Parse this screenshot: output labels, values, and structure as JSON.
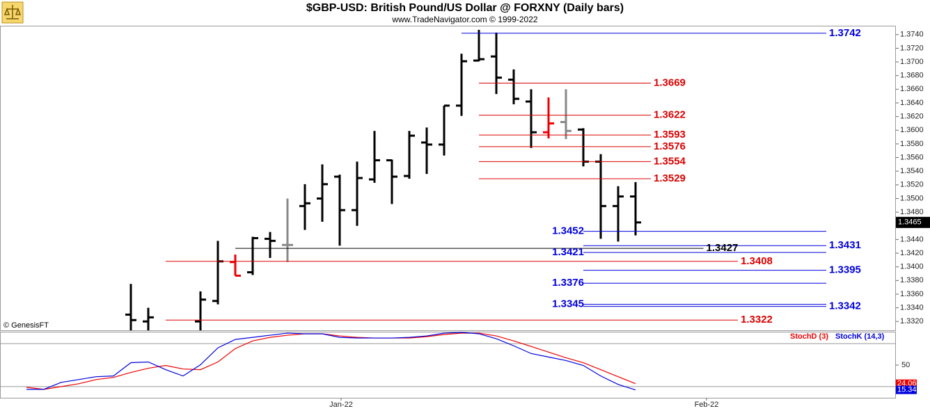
{
  "chart_data": [
    {
      "type": "ohlc",
      "title": "$GBP-USD:  British Pound/US Dollar @ FORXNY  (Daily bars)",
      "subtitle": "www.TradeNavigator.com © 1999-2022",
      "watermark": "© GenesisFT",
      "x": [
        0,
        1,
        4,
        5,
        6,
        7,
        8,
        9,
        10,
        11,
        12,
        13,
        14,
        15,
        16,
        17,
        18,
        19,
        20,
        21,
        22,
        23,
        24,
        25,
        26,
        27,
        28,
        29
      ],
      "open": [
        1.333,
        1.332,
        1.332,
        1.335,
        1.3407,
        1.3392,
        1.3441,
        1.3432,
        1.3489,
        1.35,
        1.3532,
        1.3483,
        1.3528,
        1.3556,
        1.3533,
        1.3582,
        1.3579,
        1.3636,
        1.3702,
        1.3708,
        1.3674,
        1.3642,
        1.3597,
        1.3612,
        1.3601,
        1.3554,
        1.3489,
        1.3503
      ],
      "high": [
        1.3375,
        1.334,
        1.3364,
        1.3438,
        1.3418,
        1.3444,
        1.3451,
        1.35,
        1.3521,
        1.355,
        1.3535,
        1.3554,
        1.3599,
        1.3557,
        1.3599,
        1.3604,
        1.3636,
        1.3712,
        1.3747,
        1.3743,
        1.3689,
        1.366,
        1.3648,
        1.366,
        1.3603,
        1.3565,
        1.3518,
        1.3524
      ],
      "low": [
        1.329,
        1.33,
        1.33,
        1.3345,
        1.3387,
        1.3388,
        1.3413,
        1.3407,
        1.3454,
        1.3466,
        1.3431,
        1.346,
        1.3523,
        1.3492,
        1.3529,
        1.3536,
        1.3563,
        1.3621,
        1.3701,
        1.3653,
        1.3638,
        1.3574,
        1.3588,
        1.3587,
        1.3547,
        1.3441,
        1.3437,
        1.3446
      ],
      "close": [
        1.3322,
        1.3326,
        1.3352,
        1.3408,
        1.3387,
        1.3442,
        1.3438,
        1.3432,
        1.3493,
        1.3521,
        1.3483,
        1.353,
        1.3556,
        1.3532,
        1.3592,
        1.3579,
        1.3636,
        1.3701,
        1.3704,
        1.3677,
        1.3646,
        1.3597,
        1.361,
        1.3599,
        1.3554,
        1.3489,
        1.3503,
        1.3465
      ],
      "bar_colors": [
        "#000000",
        "#000000",
        "#000000",
        "#000000",
        "#ee0000",
        "#000000",
        "#000000",
        "#888888",
        "#000000",
        "#000000",
        "#000000",
        "#000000",
        "#000000",
        "#000000",
        "#000000",
        "#000000",
        "#000000",
        "#000000",
        "#000000",
        "#000000",
        "#000000",
        "#000000",
        "#ee0000",
        "#888888",
        "#000000",
        "#000000",
        "#000000",
        "#000000"
      ],
      "xlim": [
        -7.52,
        43.96
      ],
      "ylim": [
        1.3307,
        1.3753
      ],
      "yticks": [
        {
          "value": 1.332,
          "label": "1.3320"
        },
        {
          "value": 1.334,
          "label": "1.3340"
        },
        {
          "value": 1.336,
          "label": "1.3360"
        },
        {
          "value": 1.338,
          "label": "1.3380"
        },
        {
          "value": 1.34,
          "label": "1.3400"
        },
        {
          "value": 1.342,
          "label": "1.3420"
        },
        {
          "value": 1.344,
          "label": "1.3440"
        },
        {
          "value": 1.346,
          "label": "1.3460"
        },
        {
          "value": 1.348,
          "label": "1.3480"
        },
        {
          "value": 1.35,
          "label": "1.3500"
        },
        {
          "value": 1.352,
          "label": "1.3520"
        },
        {
          "value": 1.354,
          "label": "1.3540"
        },
        {
          "value": 1.356,
          "label": "1.3560"
        },
        {
          "value": 1.358,
          "label": "1.3580"
        },
        {
          "value": 1.36,
          "label": "1.3600"
        },
        {
          "value": 1.362,
          "label": "1.3620"
        },
        {
          "value": 1.364,
          "label": "1.3640"
        },
        {
          "value": 1.366,
          "label": "1.3660"
        },
        {
          "value": 1.368,
          "label": "1.3680"
        },
        {
          "value": 1.37,
          "label": "1.3700"
        },
        {
          "value": 1.372,
          "label": "1.3720"
        },
        {
          "value": 1.374,
          "label": "1.3740"
        }
      ],
      "levels": [
        {
          "value": 1.3742,
          "color": "#0000dd",
          "from": 19,
          "to": 39.96,
          "label_side": "right"
        },
        {
          "value": 1.3669,
          "color": "#dd0000",
          "from": 20,
          "to": 29.88,
          "label_side": "right"
        },
        {
          "value": 1.3622,
          "color": "#dd0000",
          "from": 20,
          "to": 29.88,
          "label_side": "right"
        },
        {
          "value": 1.3593,
          "color": "#dd0000",
          "from": 20,
          "to": 29.88,
          "label_side": "right"
        },
        {
          "value": 1.3576,
          "color": "#dd0000",
          "from": 20,
          "to": 29.88,
          "label_side": "right"
        },
        {
          "value": 1.3554,
          "color": "#dd0000",
          "from": 20,
          "to": 29.88,
          "label_side": "right"
        },
        {
          "value": 1.3529,
          "color": "#dd0000",
          "from": 20,
          "to": 29.88,
          "label_side": "right"
        },
        {
          "value": 1.3452,
          "color": "#0000dd",
          "from": 26,
          "to": 39.96,
          "label_side": "left"
        },
        {
          "value": 1.3431,
          "color": "#0000dd",
          "from": 26,
          "to": 39.96,
          "label_side": "right"
        },
        {
          "value": 1.3427,
          "color": "#000000",
          "from": 6,
          "to": 32.9,
          "label_side": "right"
        },
        {
          "value": 1.3421,
          "color": "#0000dd",
          "from": 26,
          "to": 39.96,
          "label_side": "left"
        },
        {
          "value": 1.3408,
          "color": "#dd0000",
          "from": 2,
          "to": 34.88,
          "label_side": "right"
        },
        {
          "value": 1.3395,
          "color": "#0000dd",
          "from": 26,
          "to": 39.96,
          "label_side": "right"
        },
        {
          "value": 1.3376,
          "color": "#0000dd",
          "from": 26,
          "to": 39.96,
          "label_side": "left"
        },
        {
          "value": 1.3345,
          "color": "#0000dd",
          "from": 26,
          "to": 39.96,
          "label_side": "left"
        },
        {
          "value": 1.3342,
          "color": "#0000dd",
          "from": 26,
          "to": 39.96,
          "label_side": "right"
        },
        {
          "value": 1.3322,
          "color": "#dd0000",
          "from": 2,
          "to": 34.88,
          "label_side": "right"
        }
      ]
    },
    {
      "type": "line",
      "x": [
        -6,
        -5,
        -4,
        -3,
        -2,
        -1,
        0,
        1,
        2,
        3,
        4,
        5,
        6,
        7,
        8,
        9,
        10,
        11,
        12,
        13,
        14,
        15,
        16,
        17,
        18,
        19,
        20,
        21,
        22,
        23,
        24,
        25,
        26,
        27,
        28,
        29
      ],
      "series": [
        {
          "name": "StochD (3)",
          "color": "#ee0000",
          "values": [
            19.0,
            16.1,
            20.0,
            23.9,
            29.8,
            32.8,
            39.7,
            45.6,
            49.5,
            44.6,
            43.6,
            54.4,
            73.1,
            83.9,
            88.8,
            91.8,
            93.8,
            93.8,
            90.8,
            88.8,
            87.9,
            87.9,
            87.9,
            89.8,
            92.8,
            94.7,
            94.7,
            90.8,
            83.9,
            76.1,
            68.2,
            60.3,
            53.4,
            43.6,
            33.8,
            24.06
          ]
        },
        {
          "name": "StochK (14,3)",
          "color": "#0000dd",
          "values": [
            16.1,
            16.1,
            25.9,
            29.8,
            33.8,
            34.8,
            53.4,
            54.4,
            43.6,
            34.8,
            50.5,
            74.1,
            85.9,
            88.8,
            91.8,
            94.7,
            93.8,
            93.8,
            88.8,
            87.9,
            87.9,
            87.9,
            88.8,
            90.8,
            94.7,
            95.7,
            93.8,
            86.9,
            77.0,
            66.2,
            61.3,
            56.4,
            49.5,
            34.8,
            23.0,
            15.34
          ]
        }
      ],
      "xlim": [
        -7.52,
        43.96
      ],
      "ylim": [
        4.3,
        96.7
      ],
      "yticks": [
        50
      ],
      "hlines": [
        20,
        80
      ],
      "xticks": [
        {
          "value": 12.08,
          "label": "Jan-22"
        },
        {
          "value": 33.08,
          "label": "Feb-22"
        }
      ]
    }
  ]
}
